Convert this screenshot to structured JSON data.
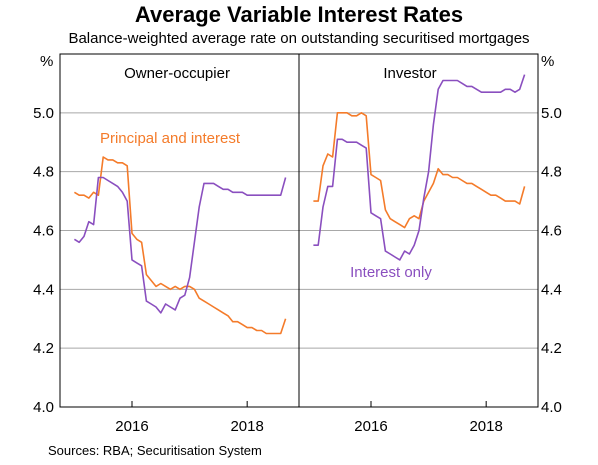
{
  "title": "Average Variable Interest Rates",
  "subtitle": "Balance-weighted average rate on outstanding securitised mortgages",
  "source": "Sources:   RBA; Securitisation System",
  "chart_data": {
    "type": "line",
    "unit_label": "%",
    "ylim": [
      4.0,
      5.2
    ],
    "yticks": [
      "4.0",
      "4.2",
      "4.4",
      "4.6",
      "4.8",
      "5.0"
    ],
    "yticks_values": [
      4.0,
      4.2,
      4.4,
      4.6,
      4.8,
      5.0
    ],
    "xlim": [
      2014.75,
      2018.9
    ],
    "xticks": [
      "2016",
      "2018"
    ],
    "xticks_values": [
      2016.0,
      2018.0
    ],
    "grid": true,
    "colors": {
      "pi": "#f47b2a",
      "io": "#8a4fbf",
      "grid": "#a8a8a8",
      "frame": "#000000"
    },
    "panels": [
      {
        "name": "Owner-occupier",
        "label": "Owner-occupier",
        "annotation": "Principal and interest",
        "series": [
          {
            "name": "Principal and interest",
            "color": "#f47b2a",
            "x": [
              2015.0,
              2015.083,
              2015.167,
              2015.25,
              2015.333,
              2015.417,
              2015.5,
              2015.583,
              2015.667,
              2015.75,
              2015.833,
              2015.917,
              2016.0,
              2016.083,
              2016.167,
              2016.25,
              2016.333,
              2016.417,
              2016.5,
              2016.583,
              2016.667,
              2016.75,
              2016.833,
              2016.917,
              2017.0,
              2017.083,
              2017.167,
              2017.25,
              2017.333,
              2017.417,
              2017.5,
              2017.583,
              2017.667,
              2017.75,
              2017.833,
              2017.917,
              2018.0,
              2018.083,
              2018.167,
              2018.25,
              2018.333,
              2018.417,
              2018.5,
              2018.583,
              2018.667
            ],
            "y": [
              4.73,
              4.72,
              4.72,
              4.71,
              4.73,
              4.72,
              4.85,
              4.84,
              4.84,
              4.83,
              4.83,
              4.82,
              4.59,
              4.57,
              4.56,
              4.45,
              4.43,
              4.41,
              4.42,
              4.41,
              4.4,
              4.41,
              4.4,
              4.41,
              4.41,
              4.4,
              4.37,
              4.36,
              4.35,
              4.34,
              4.33,
              4.32,
              4.31,
              4.29,
              4.29,
              4.28,
              4.27,
              4.27,
              4.26,
              4.26,
              4.25,
              4.25,
              4.25,
              4.25,
              4.3
            ]
          },
          {
            "name": "Interest only",
            "color": "#8a4fbf",
            "x": [
              2015.0,
              2015.083,
              2015.167,
              2015.25,
              2015.333,
              2015.417,
              2015.5,
              2015.583,
              2015.667,
              2015.75,
              2015.833,
              2015.917,
              2016.0,
              2016.083,
              2016.167,
              2016.25,
              2016.333,
              2016.417,
              2016.5,
              2016.583,
              2016.667,
              2016.75,
              2016.833,
              2016.917,
              2017.0,
              2017.083,
              2017.167,
              2017.25,
              2017.333,
              2017.417,
              2017.5,
              2017.583,
              2017.667,
              2017.75,
              2017.833,
              2017.917,
              2018.0,
              2018.083,
              2018.167,
              2018.25,
              2018.333,
              2018.417,
              2018.5,
              2018.583,
              2018.667
            ],
            "y": [
              4.57,
              4.56,
              4.58,
              4.63,
              4.62,
              4.78,
              4.78,
              4.77,
              4.76,
              4.75,
              4.73,
              4.7,
              4.5,
              4.49,
              4.48,
              4.36,
              4.35,
              4.34,
              4.32,
              4.35,
              4.34,
              4.33,
              4.37,
              4.38,
              4.44,
              4.56,
              4.68,
              4.76,
              4.76,
              4.76,
              4.75,
              4.74,
              4.74,
              4.73,
              4.73,
              4.73,
              4.72,
              4.72,
              4.72,
              4.72,
              4.72,
              4.72,
              4.72,
              4.72,
              4.78
            ]
          }
        ]
      },
      {
        "name": "Investor",
        "label": "Investor",
        "annotation": "Interest only",
        "series": [
          {
            "name": "Principal and interest",
            "color": "#f47b2a",
            "x": [
              2015.0,
              2015.083,
              2015.167,
              2015.25,
              2015.333,
              2015.417,
              2015.5,
              2015.583,
              2015.667,
              2015.75,
              2015.833,
              2015.917,
              2016.0,
              2016.083,
              2016.167,
              2016.25,
              2016.333,
              2016.417,
              2016.5,
              2016.583,
              2016.667,
              2016.75,
              2016.833,
              2016.917,
              2017.0,
              2017.083,
              2017.167,
              2017.25,
              2017.333,
              2017.417,
              2017.5,
              2017.583,
              2017.667,
              2017.75,
              2017.833,
              2017.917,
              2018.0,
              2018.083,
              2018.167,
              2018.25,
              2018.333,
              2018.417,
              2018.5,
              2018.583,
              2018.667
            ],
            "y": [
              4.7,
              4.7,
              4.82,
              4.86,
              4.85,
              5.0,
              5.0,
              5.0,
              4.99,
              4.99,
              5.0,
              4.99,
              4.79,
              4.78,
              4.77,
              4.67,
              4.64,
              4.63,
              4.62,
              4.61,
              4.64,
              4.65,
              4.64,
              4.7,
              4.73,
              4.76,
              4.81,
              4.79,
              4.79,
              4.78,
              4.78,
              4.77,
              4.76,
              4.76,
              4.75,
              4.74,
              4.73,
              4.72,
              4.72,
              4.71,
              4.7,
              4.7,
              4.7,
              4.69,
              4.75
            ]
          },
          {
            "name": "Interest only",
            "color": "#8a4fbf",
            "x": [
              2015.0,
              2015.083,
              2015.167,
              2015.25,
              2015.333,
              2015.417,
              2015.5,
              2015.583,
              2015.667,
              2015.75,
              2015.833,
              2015.917,
              2016.0,
              2016.083,
              2016.167,
              2016.25,
              2016.333,
              2016.417,
              2016.5,
              2016.583,
              2016.667,
              2016.75,
              2016.833,
              2016.917,
              2017.0,
              2017.083,
              2017.167,
              2017.25,
              2017.333,
              2017.417,
              2017.5,
              2017.583,
              2017.667,
              2017.75,
              2017.833,
              2017.917,
              2018.0,
              2018.083,
              2018.167,
              2018.25,
              2018.333,
              2018.417,
              2018.5,
              2018.583,
              2018.667
            ],
            "y": [
              4.55,
              4.55,
              4.68,
              4.75,
              4.75,
              4.91,
              4.91,
              4.9,
              4.9,
              4.9,
              4.89,
              4.88,
              4.66,
              4.65,
              4.64,
              4.53,
              4.52,
              4.51,
              4.5,
              4.53,
              4.52,
              4.55,
              4.6,
              4.71,
              4.8,
              4.96,
              5.08,
              5.11,
              5.11,
              5.11,
              5.11,
              5.1,
              5.09,
              5.09,
              5.08,
              5.07,
              5.07,
              5.07,
              5.07,
              5.07,
              5.08,
              5.08,
              5.07,
              5.08,
              5.13
            ]
          }
        ]
      }
    ]
  }
}
